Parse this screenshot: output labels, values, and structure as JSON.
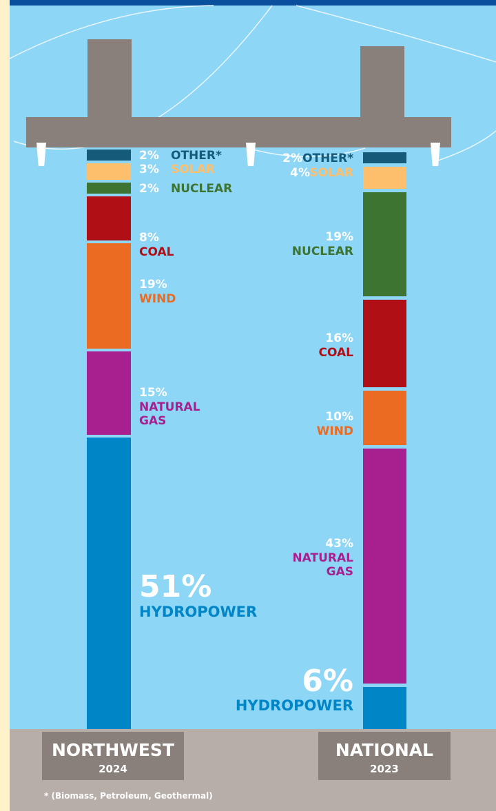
{
  "colors": {
    "other": "#155a78",
    "solar": "#fdbf6b",
    "nuclear": "#3e7432",
    "coal": "#b00f15",
    "wind": "#ec6b23",
    "natural_gas": "#a81f8f",
    "hydropower": "#0085c7"
  },
  "chart_data": [
    {
      "type": "bar",
      "stacked": true,
      "region": "NORTHWEST",
      "year": "2024",
      "segments": [
        {
          "key": "other",
          "name": "OTHER*",
          "pct_label": "2%",
          "value": 2
        },
        {
          "key": "solar",
          "name": "SOLAR",
          "pct_label": "3%",
          "value": 3
        },
        {
          "key": "nuclear",
          "name": "NUCLEAR",
          "pct_label": "2%",
          "value": 2
        },
        {
          "key": "coal",
          "name": "COAL",
          "pct_label": "8%",
          "value": 8
        },
        {
          "key": "wind",
          "name": "WIND",
          "pct_label": "19%",
          "value": 19
        },
        {
          "key": "natural_gas",
          "name": "NATURAL GAS",
          "pct_label": "15%",
          "value": 15
        },
        {
          "key": "hydropower",
          "name": "HYDROPOWER",
          "pct_label": "51%",
          "value": 51
        }
      ]
    },
    {
      "type": "bar",
      "stacked": true,
      "region": "NATIONAL",
      "year": "2023",
      "segments": [
        {
          "key": "other",
          "name": "OTHER*",
          "pct_label": "2%",
          "value": 2
        },
        {
          "key": "solar",
          "name": "SOLAR",
          "pct_label": "4%",
          "value": 4
        },
        {
          "key": "nuclear",
          "name": "NUCLEAR",
          "pct_label": "19%",
          "value": 19
        },
        {
          "key": "coal",
          "name": "COAL",
          "pct_label": "16%",
          "value": 16
        },
        {
          "key": "wind",
          "name": "WIND",
          "pct_label": "10%",
          "value": 10
        },
        {
          "key": "natural_gas",
          "name": "NATURAL GAS",
          "pct_label": "43%",
          "value": 43
        },
        {
          "key": "hydropower",
          "name": "HYDROPOWER",
          "pct_label": "6%",
          "value": 6
        }
      ]
    }
  ],
  "footnote": "* (Biomass, Petroleum, Geothermal)"
}
